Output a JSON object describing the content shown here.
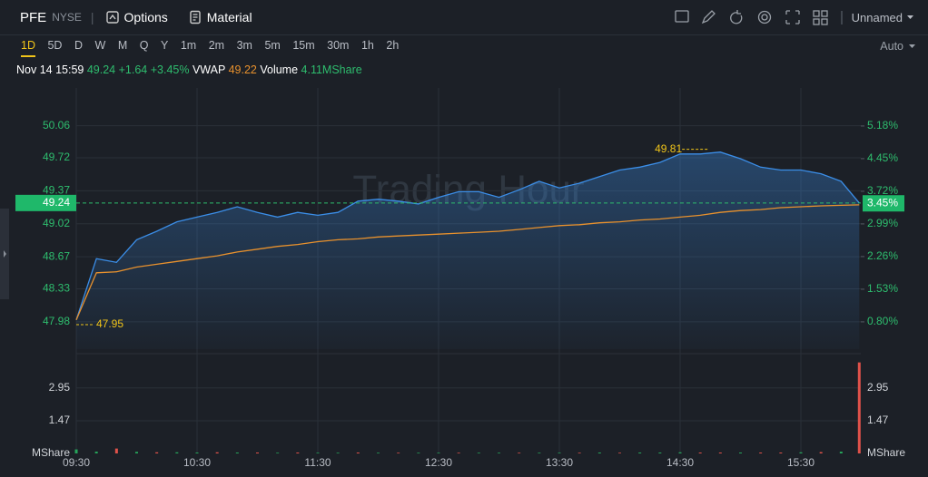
{
  "toolbar": {
    "symbol": "PFE",
    "exchange": "NYSE",
    "separator": "|",
    "buttons": [
      "Options",
      "Material"
    ],
    "layout": "Unnamed"
  },
  "timeframes": [
    "1D",
    "5D",
    "D",
    "W",
    "M",
    "Q",
    "Y",
    "1m",
    "2m",
    "3m",
    "5m",
    "15m",
    "30m",
    "1h",
    "2h"
  ],
  "active_timeframe": 0,
  "scale_mode": "Auto",
  "info": {
    "time": "Nov 14 15:59",
    "price": "49.24",
    "change": "+1.64",
    "change_pct": "+3.45%",
    "vwap_label": "VWAP",
    "vwap": "49.22",
    "volume_label": "Volume",
    "volume": "4.11MShare"
  },
  "chart_data": [
    {
      "type": "line",
      "watermark": "Trading Hour",
      "x": [
        "09:30",
        "09:40",
        "09:50",
        "10:00",
        "10:10",
        "10:20",
        "10:30",
        "10:40",
        "10:50",
        "11:00",
        "11:10",
        "11:20",
        "11:30",
        "11:40",
        "11:50",
        "12:00",
        "12:10",
        "12:20",
        "12:30",
        "12:40",
        "12:50",
        "13:00",
        "13:10",
        "13:20",
        "13:30",
        "13:40",
        "13:50",
        "14:00",
        "14:10",
        "14:20",
        "14:30",
        "14:40",
        "14:50",
        "15:00",
        "15:10",
        "15:20",
        "15:30",
        "15:40",
        "15:50",
        "15:59"
      ],
      "series": [
        {
          "color": "#3b8ee8",
          "area": true,
          "values": [
            48.0,
            48.65,
            48.61,
            48.85,
            48.94,
            49.04,
            49.09,
            49.14,
            49.2,
            49.14,
            49.09,
            49.14,
            49.11,
            49.14,
            49.26,
            49.28,
            49.26,
            49.23,
            49.3,
            49.36,
            49.36,
            49.3,
            49.38,
            49.47,
            49.4,
            49.45,
            49.52,
            49.59,
            49.62,
            49.67,
            49.76,
            49.76,
            49.78,
            49.71,
            49.62,
            49.59,
            49.59,
            49.55,
            49.47,
            49.24
          ]
        },
        {
          "color": "#e8912d",
          "area": false,
          "values": [
            48.0,
            48.5,
            48.51,
            48.56,
            48.59,
            48.62,
            48.65,
            48.68,
            48.72,
            48.75,
            48.78,
            48.8,
            48.83,
            48.85,
            48.86,
            48.88,
            48.89,
            48.9,
            48.91,
            48.92,
            48.93,
            48.94,
            48.96,
            48.98,
            49.0,
            49.01,
            49.03,
            49.04,
            49.06,
            49.07,
            49.09,
            49.11,
            49.14,
            49.16,
            49.17,
            49.19,
            49.2,
            49.21,
            49.215,
            49.22
          ]
        }
      ],
      "ylim": [
        47.69,
        50.46
      ],
      "yticks": [
        47.98,
        48.33,
        48.67,
        49.02,
        49.37,
        49.72,
        50.06
      ],
      "y2lim": [
        0.19,
        6.03
      ],
      "y2ticks": [
        {
          "value": 0.8,
          "label": "0.80%"
        },
        {
          "value": 1.53,
          "label": "1.53%"
        },
        {
          "value": 2.26,
          "label": "2.26%"
        },
        {
          "value": 2.99,
          "label": "2.99%"
        },
        {
          "value": 3.72,
          "label": "3.72%"
        },
        {
          "value": 4.45,
          "label": "4.45%"
        },
        {
          "value": 5.18,
          "label": "5.18%"
        }
      ],
      "xticks": [
        "09:30",
        "10:30",
        "11:30",
        "12:30",
        "13:30",
        "14:30",
        "15:30"
      ],
      "high": {
        "x": "14:40",
        "value": 49.81
      },
      "low": {
        "x": "09:30",
        "value": 47.95
      },
      "last": {
        "value": 49.24,
        "y2": {
          "value": 3.45,
          "label": "3.45%"
        }
      },
      "grid": true
    },
    {
      "type": "bar",
      "values": [
        0.18,
        0.08,
        0.22,
        0.07,
        0.05,
        0.05,
        0.04,
        0.05,
        0.04,
        0.04,
        0.03,
        0.04,
        0.03,
        0.03,
        0.04,
        0.03,
        0.03,
        0.03,
        0.03,
        0.03,
        0.03,
        0.03,
        0.03,
        0.03,
        0.03,
        0.03,
        0.04,
        0.03,
        0.04,
        0.04,
        0.05,
        0.04,
        0.04,
        0.04,
        0.04,
        0.04,
        0.05,
        0.06,
        0.08,
        4.1
      ],
      "colors": [
        "#26a65b",
        "#26a65b",
        "#e0524a",
        "#26a65b",
        "#e0524a",
        "#26a65b",
        "#26a65b",
        "#e0524a",
        "#26a65b",
        "#e0524a",
        "#26a65b",
        "#e0524a",
        "#26a65b",
        "#26a65b",
        "#e0524a",
        "#26a65b",
        "#e0524a",
        "#26a65b",
        "#26a65b",
        "#e0524a",
        "#26a65b",
        "#26a65b",
        "#e0524a",
        "#26a65b",
        "#26a65b",
        "#e0524a",
        "#26a65b",
        "#e0524a",
        "#26a65b",
        "#26a65b",
        "#26a65b",
        "#e0524a",
        "#e0524a",
        "#26a65b",
        "#e0524a",
        "#e0524a",
        "#26a65b",
        "#e0524a",
        "#26a65b",
        "#e0524a"
      ],
      "ylim": [
        0,
        4.29
      ],
      "yticks": [
        {
          "value": 0,
          "label": "MShare"
        },
        1.47,
        2.95
      ]
    }
  ]
}
